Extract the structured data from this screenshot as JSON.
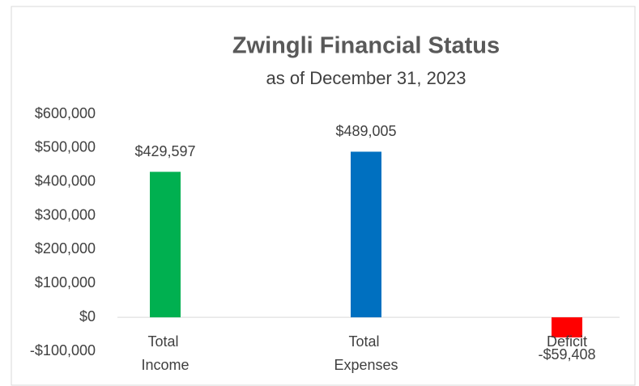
{
  "chart_data": {
    "type": "bar",
    "title": "Zwingli Financial Status",
    "subtitle": "as of December 31, 2023",
    "categories": [
      "Total Income",
      "Total Expenses",
      "Deficit"
    ],
    "values": [
      429597,
      489005,
      -59408
    ],
    "value_labels": [
      "$429,597",
      "$489,005",
      "-$59,408"
    ],
    "colors": [
      "#00b050",
      "#0070c0",
      "#ff0000"
    ],
    "ylim": [
      -100000,
      600000
    ],
    "yticks": [
      {
        "value": -100000,
        "label": "-$100,000"
      },
      {
        "value": 0,
        "label": "$0"
      },
      {
        "value": 100000,
        "label": "$100,000"
      },
      {
        "value": 200000,
        "label": "$200,000"
      },
      {
        "value": 300000,
        "label": "$300,000"
      },
      {
        "value": 400000,
        "label": "$400,000"
      },
      {
        "value": 500000,
        "label": "$500,000"
      },
      {
        "value": 600000,
        "label": "$600,000"
      }
    ],
    "grid": false
  }
}
